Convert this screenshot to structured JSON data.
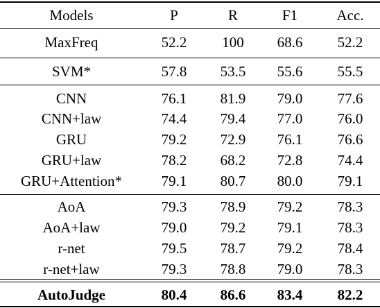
{
  "table": {
    "header": [
      "Models",
      "P",
      "R",
      "F1",
      "Acc."
    ],
    "groups": [
      [
        [
          "MaxFreq",
          "52.2",
          "100",
          "68.6",
          "52.2"
        ]
      ],
      [
        [
          "SVM*",
          "57.8",
          "53.5",
          "55.6",
          "55.5"
        ]
      ],
      [
        [
          "CNN",
          "76.1",
          "81.9",
          "79.0",
          "77.6"
        ],
        [
          "CNN+law",
          "74.4",
          "79.4",
          "77.0",
          "76.0"
        ],
        [
          "GRU",
          "79.2",
          "72.9",
          "76.1",
          "76.6"
        ],
        [
          "GRU+law",
          "78.2",
          "68.2",
          "72.8",
          "74.4"
        ],
        [
          "GRU+Attention*",
          "79.1",
          "80.7",
          "80.0",
          "79.1"
        ]
      ],
      [
        [
          "AoA",
          "79.3",
          "78.9",
          "79.2",
          "78.3"
        ],
        [
          "AoA+law",
          "79.0",
          "79.2",
          "79.1",
          "78.3"
        ],
        [
          "r-net",
          "79.5",
          "78.7",
          "79.2",
          "78.4"
        ],
        [
          "r-net+law",
          "79.3",
          "78.8",
          "79.0",
          "78.3"
        ]
      ],
      [
        [
          "AutoJudge",
          "80.4",
          "86.6",
          "83.4",
          "82.2"
        ]
      ]
    ]
  }
}
